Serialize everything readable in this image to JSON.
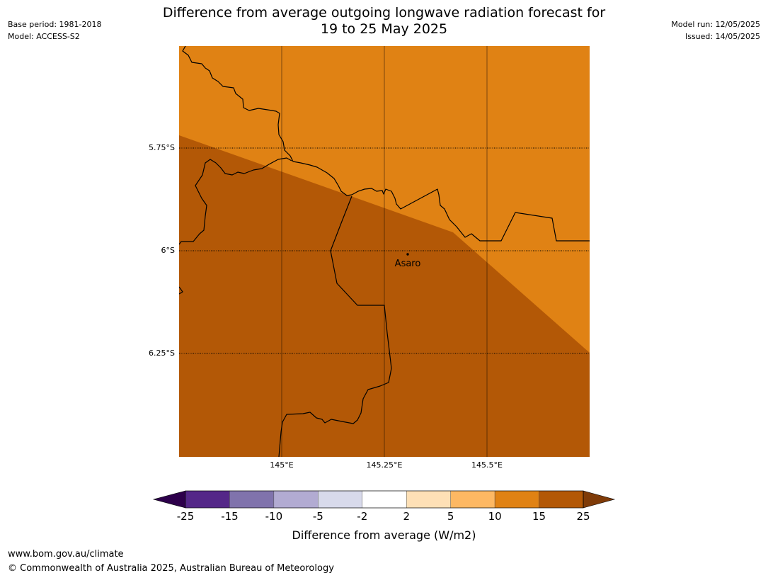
{
  "header": {
    "base_period": "Base period: 1981-2018",
    "model": "Model: ACCESS-S2",
    "model_run": "Model run: 12/05/2025",
    "issued": "Issued: 14/05/2025",
    "title_line1": "Difference from average outgoing longwave radiation forecast for",
    "title_line2": "19 to 25 May 2025"
  },
  "map": {
    "lat_labels": [
      "5.75°S",
      "6°S",
      "6.25°S"
    ],
    "lon_labels": [
      "145°E",
      "145.25°E",
      "145.5°E"
    ],
    "place_label": "Asaro",
    "colors": {
      "band_10_15": "#e08214",
      "band_15_25": "#b35806",
      "boundary": "#000000",
      "gridline": "#000000"
    }
  },
  "colorbar": {
    "ticks": [
      "-25",
      "-15",
      "-10",
      "-5",
      "-2",
      "2",
      "5",
      "10",
      "15",
      "25"
    ],
    "colors": [
      "#2d004b",
      "#542788",
      "#8073ac",
      "#b2abd2",
      "#d8daeb",
      "#ffffff",
      "#fee0b6",
      "#fdb863",
      "#e08214",
      "#b35806",
      "#7f3b08"
    ],
    "label": "Difference from average (W/m2)"
  },
  "footer": {
    "url": "www.bom.gov.au/climate",
    "copyright": "© Commonwealth of Australia 2025, Australian Bureau of Meteorology"
  }
}
